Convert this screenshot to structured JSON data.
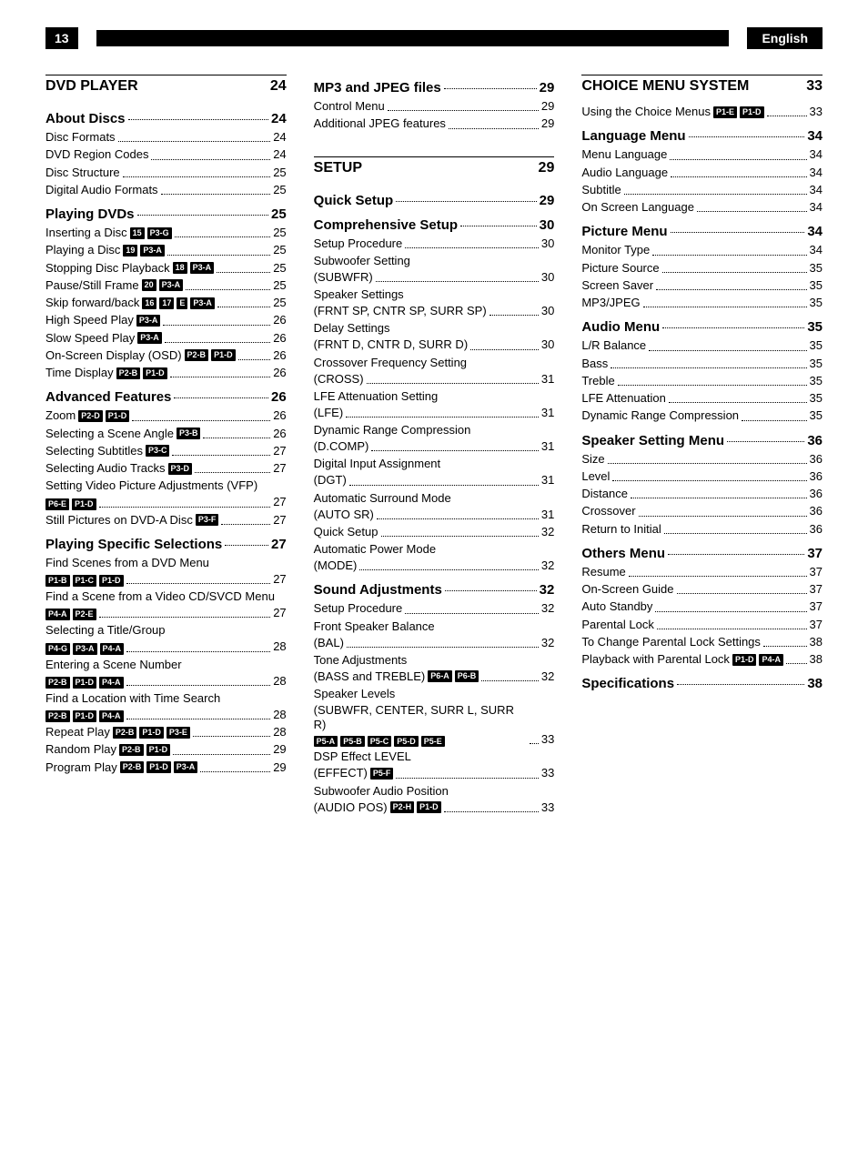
{
  "header": {
    "page": "13",
    "language": "English"
  },
  "columns": [
    [
      {
        "type": "sect",
        "label": "DVD PLAYER",
        "page": "24"
      },
      {
        "type": "h",
        "label": "About Discs",
        "page": "24"
      },
      {
        "type": "item",
        "label": "Disc Formats",
        "page": "24"
      },
      {
        "type": "item",
        "label": "DVD Region Codes",
        "page": "24"
      },
      {
        "type": "item",
        "label": "Disc Structure",
        "page": "25"
      },
      {
        "type": "item",
        "label": "Digital Audio Formats",
        "page": "25"
      },
      {
        "type": "h",
        "label": "Playing DVDs",
        "page": "25"
      },
      {
        "type": "item",
        "label": "Inserting a Disc",
        "tags": [
          "15",
          "P3-G"
        ],
        "page": "25"
      },
      {
        "type": "item",
        "label": "Playing a Disc",
        "tags": [
          "19",
          "P3-A"
        ],
        "page": "25"
      },
      {
        "type": "item",
        "label": "Stopping Disc Playback",
        "tags": [
          "18",
          "P3-A"
        ],
        "page": "25"
      },
      {
        "type": "item",
        "label": "Pause/Still Frame",
        "tags": [
          "20",
          "P3-A"
        ],
        "page": "25"
      },
      {
        "type": "item",
        "label": "Skip forward/back",
        "tags": [
          "16",
          "17",
          "E",
          "P3-A"
        ],
        "page": "25"
      },
      {
        "type": "item",
        "label": "High Speed Play",
        "tags": [
          "P3-A"
        ],
        "page": "26"
      },
      {
        "type": "item",
        "label": "Slow Speed Play",
        "tags": [
          "P3-A"
        ],
        "page": "26"
      },
      {
        "type": "item",
        "label": "On-Screen Display (OSD)",
        "tags": [
          "P2-B",
          "P1-D"
        ],
        "page": "26"
      },
      {
        "type": "item",
        "label": "Time Display",
        "tags": [
          "P2-B",
          "P1-D"
        ],
        "page": "26"
      },
      {
        "type": "h",
        "label": "Advanced Features",
        "page": "26"
      },
      {
        "type": "item",
        "label": "Zoom",
        "tags": [
          "P2-D",
          "P1-D"
        ],
        "page": "26"
      },
      {
        "type": "item",
        "label": "Selecting a Scene Angle",
        "tags": [
          "P3-B"
        ],
        "page": "26"
      },
      {
        "type": "item",
        "label": "Selecting Subtitles",
        "tags": [
          "P3-C"
        ],
        "page": "27"
      },
      {
        "type": "item",
        "label": "Selecting Audio Tracks",
        "tags": [
          "P3-D"
        ],
        "page": "27"
      },
      {
        "type": "multi",
        "label": "Setting Video Picture Adjustments (VFP)",
        "tags": [
          "P6-E",
          "P1-D"
        ],
        "page": "27"
      },
      {
        "type": "item",
        "label": "Still Pictures on DVD-A Disc",
        "tags": [
          "P3-F"
        ],
        "page": "27"
      },
      {
        "type": "h",
        "label": "Playing Specific Selections",
        "page": "27"
      },
      {
        "type": "multi",
        "label": "Find Scenes from a DVD Menu",
        "tags": [
          "P1-B",
          "P1-C",
          "P1-D"
        ],
        "page": "27"
      },
      {
        "type": "multi",
        "label": "Find a Scene from a Video CD/SVCD Menu",
        "tags": [
          "P4-A",
          "P2-E"
        ],
        "page": "27"
      },
      {
        "type": "multi",
        "label": "Selecting a Title/Group",
        "tags": [
          "P4-G",
          "P3-A",
          "P4-A"
        ],
        "page": "28"
      },
      {
        "type": "multi",
        "label": "Entering a Scene Number",
        "tags": [
          "P2-B",
          "P1-D",
          "P4-A"
        ],
        "page": "28"
      },
      {
        "type": "multi",
        "label": "Find a Location with Time Search",
        "tags": [
          "P2-B",
          "P1-D",
          "P4-A"
        ],
        "page": "28"
      },
      {
        "type": "item",
        "label": "Repeat Play",
        "tags": [
          "P2-B",
          "P1-D",
          "P3-E"
        ],
        "page": "28"
      },
      {
        "type": "item",
        "label": "Random Play",
        "tags": [
          "P2-B",
          "P1-D"
        ],
        "page": "29"
      },
      {
        "type": "item",
        "label": "Program Play",
        "tags": [
          "P2-B",
          "P1-D",
          "P3-A"
        ],
        "page": "29"
      }
    ],
    [
      {
        "type": "h",
        "label": "MP3 and JPEG files",
        "page": "29"
      },
      {
        "type": "item",
        "label": "Control Menu",
        "page": "29"
      },
      {
        "type": "item",
        "label": "Additional JPEG features",
        "page": "29"
      },
      {
        "type": "gap"
      },
      {
        "type": "sect",
        "label": "SETUP",
        "page": "29"
      },
      {
        "type": "h",
        "label": "Quick Setup",
        "page": "29"
      },
      {
        "type": "h",
        "label": "Comprehensive Setup",
        "page": "30"
      },
      {
        "type": "item",
        "label": "Setup Procedure",
        "page": "30"
      },
      {
        "type": "multi",
        "label": "Subwoofer Setting",
        "sub": "(SUBWFR)",
        "page": "30"
      },
      {
        "type": "multi",
        "label": "Speaker Settings",
        "sub": "(FRNT SP, CNTR SP, SURR SP)",
        "page": "30"
      },
      {
        "type": "multi",
        "label": "Delay Settings",
        "sub": "(FRNT D, CNTR D, SURR D)",
        "page": "30"
      },
      {
        "type": "multi",
        "label": "Crossover Frequency Setting",
        "sub": "(CROSS)",
        "page": "31"
      },
      {
        "type": "multi",
        "label": "LFE Attenuation Setting",
        "sub": "(LFE)",
        "page": "31"
      },
      {
        "type": "multi",
        "label": "Dynamic Range Compression",
        "sub": "(D.COMP)",
        "page": "31"
      },
      {
        "type": "multi",
        "label": "Digital Input Assignment",
        "sub": "(DGT)",
        "page": "31"
      },
      {
        "type": "multi",
        "label": "Automatic Surround Mode",
        "sub": "(AUTO SR)",
        "page": "31"
      },
      {
        "type": "item",
        "label": "Quick Setup",
        "page": "32"
      },
      {
        "type": "multi",
        "label": "Automatic Power Mode",
        "sub": "(MODE)",
        "page": "32"
      },
      {
        "type": "h",
        "label": "Sound Adjustments",
        "page": "32"
      },
      {
        "type": "item",
        "label": "Setup Procedure",
        "page": "32"
      },
      {
        "type": "multi",
        "label": "Front Speaker Balance",
        "sub": "(BAL)",
        "page": "32"
      },
      {
        "type": "multi",
        "label": "Tone Adjustments",
        "sub": "(BASS and TREBLE)",
        "subtags": [
          "P6-A",
          "P6-B"
        ],
        "page": "32"
      },
      {
        "type": "multi",
        "label": "Speaker Levels",
        "sub": "(SUBWFR, CENTER, SURR L, SURR R)",
        "subtags": [
          "P5-A",
          "P5-B",
          "P5-C",
          "P5-D",
          "P5-E"
        ],
        "page": "33"
      },
      {
        "type": "multi",
        "label": "DSP Effect LEVEL",
        "sub": "(EFFECT)",
        "subtags": [
          "P5-F"
        ],
        "page": "33"
      },
      {
        "type": "multi",
        "label": "Subwoofer Audio Position",
        "sub": "(AUDIO POS)",
        "subtags": [
          "P2-H",
          "P1-D"
        ],
        "page": "33"
      }
    ],
    [
      {
        "type": "sect",
        "label": "CHOICE MENU SYSTEM",
        "page": "33"
      },
      {
        "type": "item",
        "label": "Using the Choice Menus",
        "tags": [
          "P1-E",
          "P1-D"
        ],
        "page": "33"
      },
      {
        "type": "h",
        "label": "Language Menu",
        "page": "34"
      },
      {
        "type": "item",
        "label": "Menu Language",
        "page": "34"
      },
      {
        "type": "item",
        "label": "Audio Language",
        "page": "34"
      },
      {
        "type": "item",
        "label": "Subtitle",
        "page": "34"
      },
      {
        "type": "item",
        "label": "On Screen Language",
        "page": "34"
      },
      {
        "type": "h",
        "label": "Picture Menu",
        "page": "34"
      },
      {
        "type": "item",
        "label": "Monitor Type",
        "page": "34"
      },
      {
        "type": "item",
        "label": "Picture Source",
        "page": "35"
      },
      {
        "type": "item",
        "label": "Screen Saver",
        "page": "35"
      },
      {
        "type": "item",
        "label": "MP3/JPEG",
        "page": "35"
      },
      {
        "type": "h",
        "label": "Audio Menu",
        "page": "35"
      },
      {
        "type": "item",
        "label": "L/R Balance",
        "page": "35"
      },
      {
        "type": "item",
        "label": "Bass",
        "page": "35"
      },
      {
        "type": "item",
        "label": "Treble",
        "page": "35"
      },
      {
        "type": "item",
        "label": "LFE Attenuation",
        "page": "35"
      },
      {
        "type": "item",
        "label": "Dynamic Range Compression",
        "page": "35"
      },
      {
        "type": "h",
        "label": "Speaker Setting Menu",
        "page": "36"
      },
      {
        "type": "item",
        "label": "Size",
        "page": "36"
      },
      {
        "type": "item",
        "label": "Level",
        "page": "36"
      },
      {
        "type": "item",
        "label": "Distance",
        "page": "36"
      },
      {
        "type": "item",
        "label": "Crossover",
        "page": "36"
      },
      {
        "type": "item",
        "label": "Return to Initial",
        "page": "36"
      },
      {
        "type": "h",
        "label": "Others Menu",
        "page": "37"
      },
      {
        "type": "item",
        "label": "Resume",
        "page": "37"
      },
      {
        "type": "item",
        "label": "On-Screen Guide",
        "page": "37"
      },
      {
        "type": "item",
        "label": "Auto Standby",
        "page": "37"
      },
      {
        "type": "item",
        "label": "Parental Lock",
        "page": "37"
      },
      {
        "type": "item",
        "label": "To Change Parental Lock Settings",
        "page": "38"
      },
      {
        "type": "item",
        "label": "Playback with Parental Lock",
        "tags": [
          "P1-D",
          "P4-A"
        ],
        "page": "38"
      },
      {
        "type": "h",
        "label": "Specifications",
        "page": "38"
      }
    ]
  ]
}
